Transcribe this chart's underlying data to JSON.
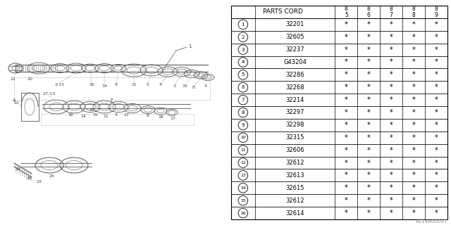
{
  "title": "A114A00097",
  "rows": [
    [
      "1",
      "32201"
    ],
    [
      "2",
      "32605"
    ],
    [
      "3",
      "32237"
    ],
    [
      "4",
      "G43204"
    ],
    [
      "5",
      "32286"
    ],
    [
      "6",
      "32268"
    ],
    [
      "7",
      "32214"
    ],
    [
      "8",
      "32297"
    ],
    [
      "9",
      "32298"
    ],
    [
      "10",
      "32315"
    ],
    [
      "11",
      "32606"
    ],
    [
      "12",
      "32612"
    ],
    [
      "13",
      "32613"
    ],
    [
      "14",
      "32615"
    ],
    [
      "15",
      "32612"
    ],
    [
      "16",
      "32614"
    ]
  ],
  "years": [
    "85",
    "86",
    "87",
    "88",
    "89"
  ],
  "bg_color": "#ffffff",
  "lc": "#000000",
  "gray": "#888888",
  "lgray": "#aaaaaa",
  "dgray": "#444444"
}
